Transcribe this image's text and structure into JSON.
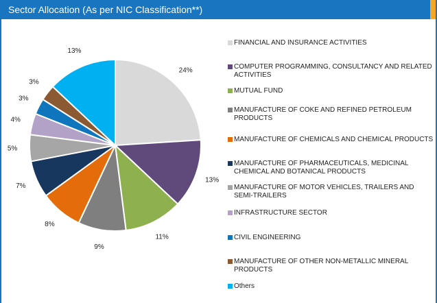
{
  "chart_data": {
    "type": "pie",
    "title": "Sector Allocation (As per NIC Classification**)",
    "categories": [
      "FINANCIAL AND INSURANCE ACTIVITIES",
      "COMPUTER PROGRAMMING, CONSULTANCY AND RELATED ACTIVITIES",
      "MUTUAL FUND",
      "MANUFACTURE OF COKE AND REFINED PETROLEUM PRODUCTS",
      "MANUFACTURE OF CHEMICALS AND CHEMICAL PRODUCTS",
      "MANUFACTURE OF PHARMACEUTICALS, MEDICINAL CHEMICAL AND BOTANICAL PRODUCTS",
      "MANUFACTURE OF MOTOR VEHICLES, TRAILERS AND SEMI-TRAILERS",
      "INFRASTRUCTURE SECTOR",
      "CIVIL ENGINEERING",
      "MANUFACTURE OF OTHER NON-METALLIC MINERAL PRODUCTS",
      "Others"
    ],
    "values": [
      24,
      13,
      11,
      9,
      8,
      7,
      5,
      4,
      3,
      3,
      13
    ],
    "value_labels": [
      "24%",
      "13%",
      "11%",
      "9%",
      "8%",
      "7%",
      "5%",
      "4%",
      "3%",
      "3%",
      "13%"
    ],
    "colors": [
      "#d9d9d9",
      "#604a7b",
      "#8fb04f",
      "#7f7f7f",
      "#e46c0a",
      "#17375e",
      "#a6a6a6",
      "#b3a2c7",
      "#0f75bc",
      "#8c5a32",
      "#00b0f0"
    ],
    "legend": "right"
  }
}
